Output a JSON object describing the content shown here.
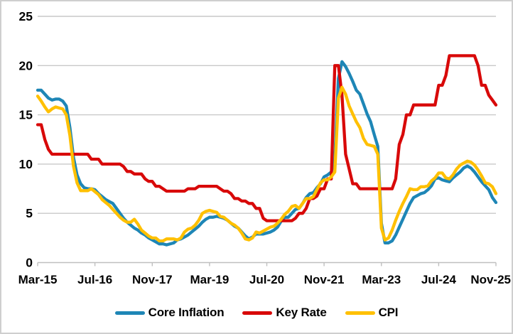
{
  "chart_data": {
    "type": "line",
    "title": "",
    "x_axis": {
      "frequency": "monthly",
      "start": "Mar-2015",
      "end": "Nov-2025",
      "tick_labels": [
        "Mar-15",
        "Jul-16",
        "Nov-17",
        "Mar-19",
        "Jul-20",
        "Nov-21",
        "Mar-23",
        "Jul-24",
        "Nov-25"
      ],
      "tick_interval_months": 16
    },
    "ylim": [
      0,
      25
    ],
    "yticks": [
      0,
      5,
      10,
      15,
      20,
      25
    ],
    "grid": "horizontal",
    "legend_position": "bottom",
    "series": [
      {
        "name": "Core Inflation",
        "color": "#1E86B6",
        "values": [
          17.5,
          17.5,
          17.1,
          16.7,
          16.5,
          16.6,
          16.6,
          16.4,
          15.9,
          13.7,
          10.7,
          8.9,
          8.0,
          7.6,
          7.5,
          7.5,
          7.4,
          7.0,
          6.7,
          6.4,
          6.2,
          6.0,
          5.5,
          5.0,
          4.5,
          4.1,
          3.8,
          3.5,
          3.3,
          3.0,
          2.8,
          2.5,
          2.3,
          2.1,
          1.9,
          1.9,
          1.8,
          1.9,
          2.0,
          2.3,
          2.4,
          2.6,
          2.8,
          3.1,
          3.4,
          3.7,
          4.1,
          4.4,
          4.6,
          4.6,
          4.7,
          4.6,
          4.5,
          4.3,
          4.0,
          3.7,
          3.5,
          3.1,
          2.7,
          2.4,
          2.6,
          2.9,
          2.9,
          2.9,
          3.0,
          3.1,
          3.3,
          3.6,
          4.2,
          4.6,
          4.6,
          5.0,
          5.4,
          5.5,
          6.0,
          6.6,
          7.0,
          7.1,
          7.6,
          8.0,
          8.7,
          8.9,
          9.2,
          10.5,
          18.7,
          20.4,
          19.9,
          19.2,
          18.4,
          17.5,
          17.1,
          16.1,
          15.1,
          14.3,
          13.0,
          11.8,
          4.0,
          2.0,
          2.0,
          2.2,
          2.8,
          3.6,
          4.4,
          5.2,
          6.0,
          6.6,
          6.8,
          7.0,
          7.1,
          7.4,
          7.8,
          8.5,
          8.6,
          8.4,
          8.3,
          8.2,
          8.6,
          8.9,
          9.2,
          9.6,
          9.8,
          9.6,
          9.2,
          8.7,
          8.2,
          7.8,
          7.4,
          6.6,
          6.1
        ]
      },
      {
        "name": "Key Rate",
        "color": "#D80909",
        "values": [
          14,
          14,
          12.5,
          11.5,
          11,
          11,
          11,
          11,
          11,
          11,
          11,
          11,
          11,
          11,
          11,
          10.5,
          10.5,
          10.5,
          10,
          10,
          10,
          10,
          10,
          10,
          9.75,
          9.25,
          9.25,
          9,
          9,
          9,
          8.5,
          8.25,
          8.25,
          7.75,
          7.75,
          7.5,
          7.25,
          7.25,
          7.25,
          7.25,
          7.25,
          7.25,
          7.5,
          7.5,
          7.5,
          7.75,
          7.75,
          7.75,
          7.75,
          7.75,
          7.75,
          7.5,
          7.25,
          7.25,
          7,
          6.5,
          6.5,
          6.25,
          6.25,
          6,
          6,
          5.5,
          5.5,
          4.5,
          4.25,
          4.25,
          4.25,
          4.25,
          4.25,
          4.25,
          4.25,
          4.25,
          4.5,
          5,
          5,
          5.5,
          6.5,
          6.5,
          6.75,
          7.5,
          7.5,
          8.5,
          8.5,
          20,
          20,
          17,
          11,
          9.5,
          8,
          8,
          7.5,
          7.5,
          7.5,
          7.5,
          7.5,
          7.5,
          7.5,
          7.5,
          7.5,
          7.5,
          8.5,
          12,
          13,
          15,
          15,
          16,
          16,
          16,
          16,
          16,
          16,
          16,
          18,
          18,
          19,
          21,
          21,
          21,
          21,
          21,
          21,
          21,
          21,
          20,
          18,
          18,
          17,
          16.5,
          16
        ]
      },
      {
        "name": "CPI",
        "color": "#FFC000",
        "values": [
          16.9,
          16.4,
          15.8,
          15.3,
          15.6,
          15.8,
          15.7,
          15.6,
          15.0,
          12.9,
          9.8,
          8.1,
          7.3,
          7.3,
          7.3,
          7.5,
          7.2,
          6.9,
          6.4,
          6.1,
          5.8,
          5.4,
          5.0,
          4.6,
          4.3,
          4.1,
          4.1,
          4.4,
          3.9,
          3.3,
          3.0,
          2.7,
          2.5,
          2.5,
          2.2,
          2.2,
          2.4,
          2.4,
          2.4,
          2.3,
          2.5,
          3.1,
          3.4,
          3.5,
          3.8,
          4.3,
          5.0,
          5.2,
          5.3,
          5.2,
          5.1,
          4.7,
          4.6,
          4.3,
          4.0,
          3.8,
          3.5,
          3.0,
          2.4,
          2.3,
          2.5,
          3.1,
          3.0,
          3.2,
          3.4,
          3.6,
          3.7,
          4.0,
          4.4,
          4.9,
          5.2,
          5.7,
          5.8,
          5.5,
          6.0,
          6.5,
          6.5,
          6.7,
          7.4,
          8.1,
          8.4,
          8.4,
          8.7,
          9.2,
          16.7,
          17.8,
          17.1,
          15.9,
          15.1,
          14.3,
          13.7,
          12.6,
          12.0,
          11.9,
          11.8,
          11.0,
          3.5,
          2.3,
          2.5,
          3.3,
          4.3,
          5.2,
          6.0,
          6.7,
          7.5,
          7.4,
          7.4,
          7.7,
          7.7,
          7.8,
          8.3,
          8.6,
          9.1,
          9.1,
          8.6,
          8.5,
          8.9,
          9.5,
          9.9,
          10.1,
          10.3,
          10.2,
          9.9,
          9.4,
          8.8,
          8.1,
          8.0,
          7.7,
          7.0
        ]
      }
    ],
    "colors": {
      "background": "#FFFFFF",
      "frame_border": "#CFCFCF",
      "gridline": "#C9C9C9",
      "axis_line": "#BFBFBF",
      "label_text": "#000000"
    },
    "line_width": 4.3
  }
}
